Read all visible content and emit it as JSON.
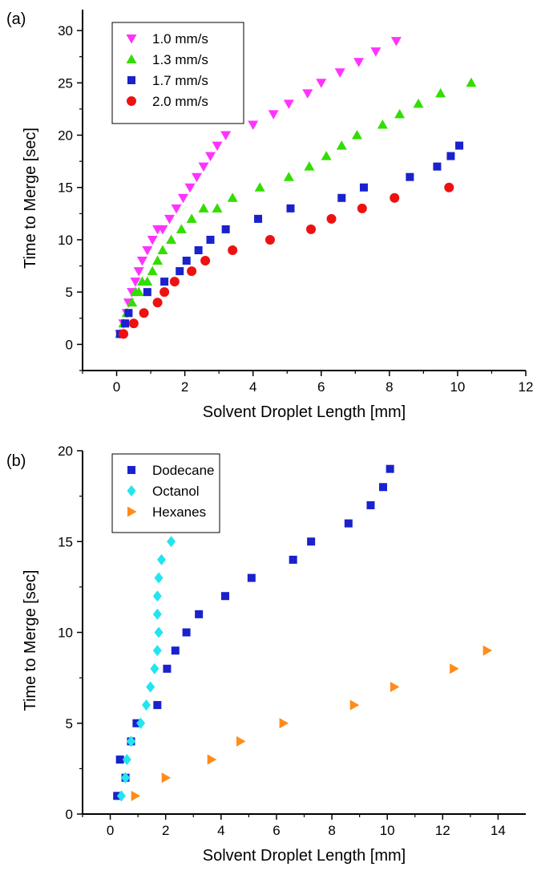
{
  "chart_data": [
    {
      "type": "scatter",
      "panel_label": "(a)",
      "xlabel": "Solvent Droplet Length [mm]",
      "ylabel": "Time to Merge [sec]",
      "xlim": [
        -1,
        12
      ],
      "ylim": [
        -2.5,
        32
      ],
      "xticks": [
        0,
        2,
        4,
        6,
        8,
        10,
        12
      ],
      "yticks": [
        0,
        5,
        10,
        15,
        20,
        25,
        30
      ],
      "grid": false,
      "legend_position": "top-left",
      "series": [
        {
          "name": "1.0 mm/s",
          "marker": "triangle-down",
          "color": "#ff33ff",
          "x": [
            0.1,
            0.2,
            0.3,
            0.35,
            0.45,
            0.55,
            0.65,
            0.75,
            0.9,
            1.05,
            1.2,
            1.35,
            1.55,
            1.75,
            1.95,
            2.15,
            2.35,
            2.55,
            2.75,
            2.95,
            3.2,
            4.0,
            4.6,
            5.05,
            5.6,
            6.0,
            6.55,
            7.1,
            7.6,
            8.2
          ],
          "y": [
            1,
            2,
            3,
            4,
            5,
            6,
            7,
            8,
            9,
            10,
            11,
            11,
            12,
            13,
            14,
            15,
            16,
            17,
            18,
            19,
            20,
            21,
            22,
            23,
            24,
            25,
            26,
            27,
            28,
            29
          ]
        },
        {
          "name": "1.3 mm/s",
          "marker": "triangle-up",
          "color": "#33dd00",
          "x": [
            0.1,
            0.2,
            0.3,
            0.45,
            0.55,
            0.65,
            0.75,
            0.9,
            1.05,
            1.2,
            1.35,
            1.6,
            1.9,
            2.2,
            2.55,
            2.95,
            3.4,
            4.2,
            5.05,
            5.65,
            6.15,
            6.6,
            7.05,
            7.8,
            8.3,
            8.85,
            9.5,
            10.4
          ],
          "y": [
            1,
            2,
            3,
            4,
            5,
            5,
            6,
            6,
            7,
            8,
            9,
            10,
            11,
            12,
            13,
            13,
            14,
            15,
            16,
            17,
            18,
            19,
            20,
            21,
            22,
            23,
            24,
            25
          ]
        },
        {
          "name": "1.7 mm/s",
          "marker": "square",
          "color": "#1a22cc",
          "x": [
            0.1,
            0.25,
            0.35,
            0.9,
            1.4,
            1.85,
            2.05,
            2.4,
            2.75,
            3.2,
            4.15,
            5.1,
            6.6,
            7.25,
            8.6,
            9.4,
            9.8,
            10.05
          ],
          "y": [
            1,
            2,
            3,
            5,
            6,
            7,
            8,
            9,
            10,
            11,
            12,
            13,
            14,
            15,
            16,
            17,
            18,
            19
          ]
        },
        {
          "name": "2.0 mm/s",
          "marker": "circle",
          "color": "#ee1111",
          "x": [
            0.2,
            0.5,
            0.8,
            1.2,
            1.4,
            1.7,
            2.2,
            2.6,
            3.4,
            4.5,
            5.7,
            6.3,
            7.2,
            8.15,
            9.75
          ],
          "y": [
            1,
            2,
            3,
            4,
            5,
            6,
            7,
            8,
            9,
            10,
            11,
            12,
            13,
            14,
            15
          ]
        }
      ]
    },
    {
      "type": "scatter",
      "panel_label": "(b)",
      "xlabel": "Solvent Droplet Length [mm]",
      "ylabel": "Time to Merge [sec]",
      "xlim": [
        -1,
        15
      ],
      "ylim": [
        0,
        20
      ],
      "xticks": [
        0,
        2,
        4,
        6,
        8,
        10,
        12,
        14
      ],
      "yticks": [
        0,
        5,
        10,
        15,
        20
      ],
      "grid": false,
      "legend_position": "top-left",
      "series": [
        {
          "name": "Dodecane",
          "marker": "square",
          "color": "#1a22cc",
          "x": [
            0.25,
            0.35,
            0.55,
            0.75,
            0.95,
            1.7,
            2.05,
            2.35,
            2.75,
            3.2,
            4.15,
            5.1,
            6.6,
            7.25,
            8.6,
            9.4,
            9.85,
            10.1
          ],
          "y": [
            1,
            3,
            2,
            4,
            5,
            6,
            8,
            9,
            10,
            11,
            12,
            13,
            14,
            15,
            16,
            17,
            18,
            19
          ]
        },
        {
          "name": "Octanol",
          "marker": "diamond",
          "color": "#22e5ee",
          "x": [
            0.4,
            0.55,
            0.6,
            0.75,
            1.1,
            1.3,
            1.45,
            1.6,
            1.7,
            1.75,
            1.7,
            1.7,
            1.75,
            1.85,
            2.2
          ],
          "y": [
            1,
            2,
            3,
            4,
            5,
            6,
            7,
            8,
            9,
            10,
            11,
            12,
            13,
            14,
            15
          ]
        },
        {
          "name": "Hexanes",
          "marker": "triangle-right",
          "color": "#ff8c1a",
          "x": [
            0.9,
            2.0,
            3.65,
            4.7,
            6.25,
            8.8,
            10.25,
            12.4,
            13.6
          ],
          "y": [
            1,
            2,
            3,
            4,
            5,
            6,
            7,
            8,
            9
          ]
        }
      ]
    }
  ]
}
